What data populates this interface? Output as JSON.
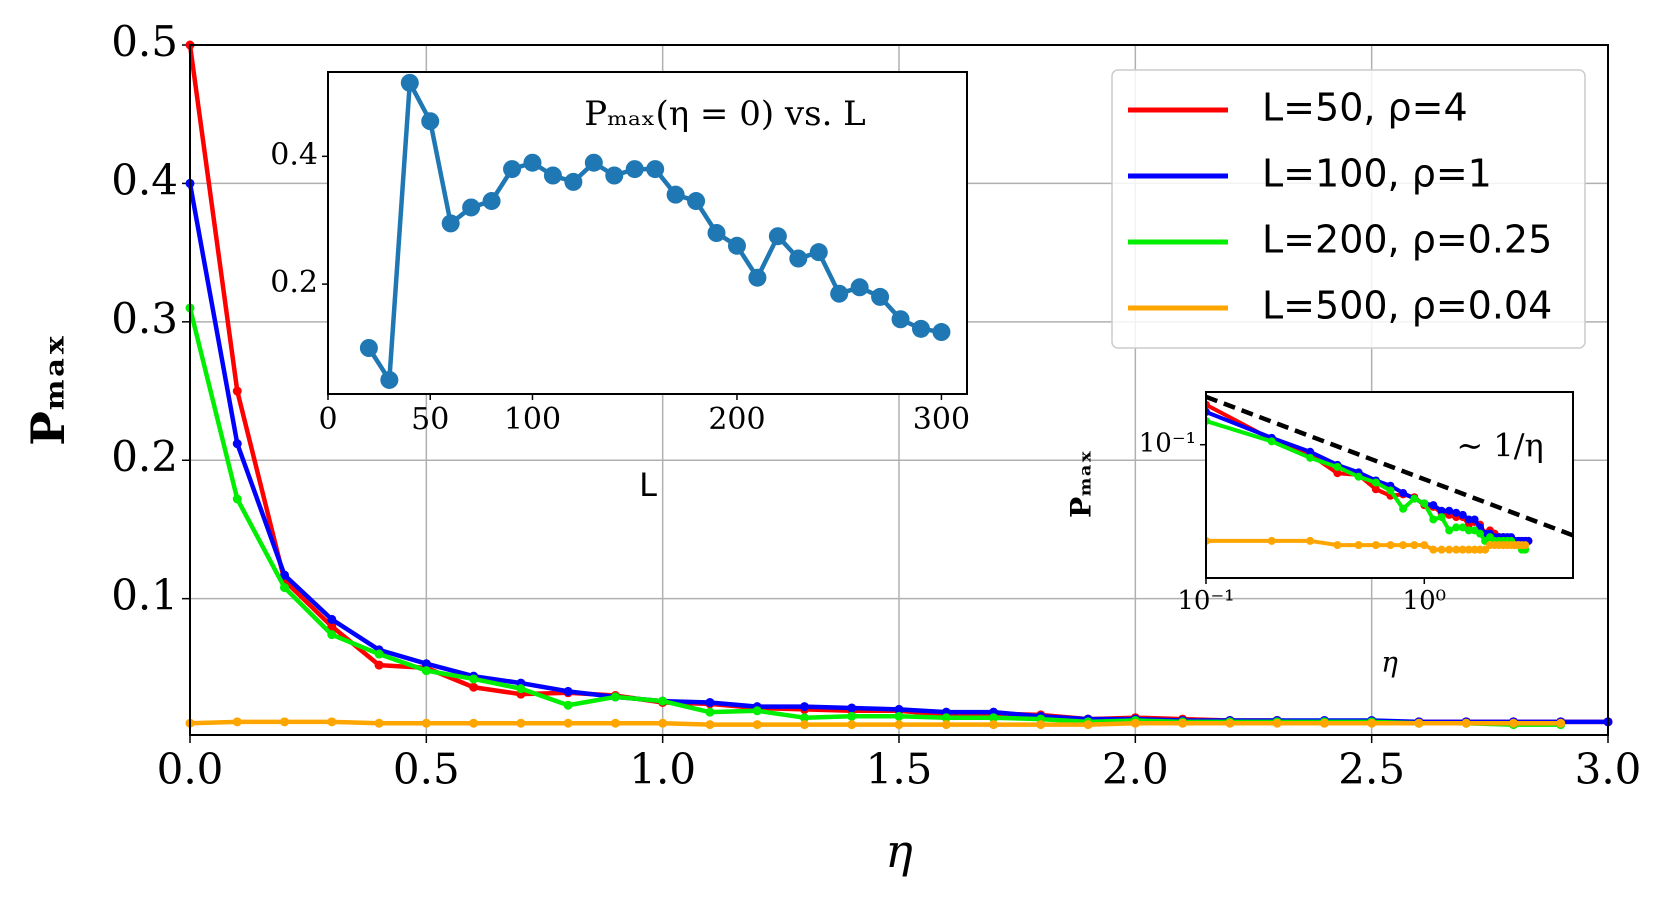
{
  "chart_data": [
    {
      "type": "line",
      "xlabel": "η",
      "ylabel": "Pₘₐₓ",
      "x": [
        0,
        0.1,
        0.2,
        0.3,
        0.4,
        0.5,
        0.6,
        0.7,
        0.8,
        0.9,
        1.0,
        1.1,
        1.2,
        1.3,
        1.4,
        1.5,
        1.6,
        1.7,
        1.8,
        1.9,
        2.0,
        2.1,
        2.2,
        2.3,
        2.4,
        2.5,
        2.6,
        2.7,
        2.8,
        2.9,
        3.0
      ],
      "series": [
        {
          "name": "L=50, ρ=4",
          "color": "#ff0000",
          "values": [
            0.5,
            0.25,
            0.113,
            0.08,
            0.052,
            0.05,
            0.036,
            0.031,
            0.032,
            0.03,
            0.025,
            0.024,
            0.021,
            0.02,
            0.019,
            0.019,
            0.016,
            0.017,
            0.016,
            0.013,
            0.014,
            0.013,
            0.012,
            0.012,
            0.011,
            0.011,
            0.011,
            0.011,
            0.011,
            0.011,
            0.011
          ]
        },
        {
          "name": "L=100, ρ=1",
          "color": "#0000ff",
          "values": [
            0.4,
            0.212,
            0.117,
            0.085,
            0.063,
            0.053,
            0.044,
            0.039,
            0.033,
            0.029,
            0.026,
            0.025,
            0.022,
            0.022,
            0.021,
            0.02,
            0.018,
            0.018,
            0.015,
            0.013,
            0.013,
            0.012,
            0.012,
            0.012,
            0.012,
            0.012,
            0.011,
            0.011,
            0.011,
            0.011,
            0.011
          ]
        },
        {
          "name": "L=200, ρ=0.25",
          "color": "#00ee00",
          "values": [
            0.31,
            0.172,
            0.108,
            0.074,
            0.06,
            0.048,
            0.042,
            0.035,
            0.023,
            0.029,
            0.026,
            0.018,
            0.019,
            0.014,
            0.015,
            0.015,
            0.014,
            0.014,
            0.013,
            0.011,
            0.012,
            0.011,
            0.011,
            0.011,
            0.011,
            0.011,
            0.01,
            0.01,
            0.009,
            0.009,
            null
          ]
        },
        {
          "name": "L=500, ρ=0.04",
          "color": "#ffa500",
          "values": [
            0.01,
            0.011,
            0.011,
            0.011,
            0.01,
            0.01,
            0.01,
            0.01,
            0.01,
            0.01,
            0.01,
            0.009,
            0.009,
            0.009,
            0.009,
            0.009,
            0.009,
            0.009,
            0.009,
            0.009,
            0.01,
            0.01,
            0.01,
            0.01,
            0.01,
            0.01,
            0.01,
            0.01,
            0.01,
            0.01,
            null
          ]
        }
      ],
      "xlim": [
        0,
        3
      ],
      "ylim": [
        0.0015,
        0.5
      ],
      "xticks": [
        {
          "value": 0,
          "label": "0.0"
        },
        0.5,
        {
          "value": 1,
          "label": "1.0"
        },
        1.5,
        {
          "value": 2,
          "label": "2.0"
        },
        2.5,
        {
          "value": 3,
          "label": "3.0"
        }
      ],
      "yticks": [
        0.1,
        0.2,
        0.3,
        0.4,
        0.5
      ],
      "grid": true,
      "legend": "upper right"
    },
    {
      "type": "line",
      "title": "Pₘₐₓ(η = 0) vs. L",
      "xlabel": "L",
      "color": "#1f77b4",
      "x": [
        20,
        30,
        40,
        50,
        60,
        70,
        80,
        90,
        100,
        110,
        120,
        130,
        140,
        150,
        160,
        170,
        180,
        190,
        200,
        210,
        220,
        230,
        240,
        250,
        260,
        270,
        280,
        290,
        300
      ],
      "values": [
        0.1,
        0.05,
        0.515,
        0.455,
        0.295,
        0.32,
        0.33,
        0.38,
        0.39,
        0.37,
        0.36,
        0.39,
        0.37,
        0.38,
        0.38,
        0.34,
        0.33,
        0.28,
        0.26,
        0.21,
        0.275,
        0.24,
        0.25,
        0.185,
        0.195,
        0.18,
        0.145,
        0.13,
        0.125
      ],
      "xlim": [
        0,
        312.5
      ],
      "ylim": [
        0.028,
        0.532
      ],
      "xticks": [
        0,
        50,
        100,
        200,
        300
      ],
      "yticks": [
        0.2,
        0.4
      ]
    },
    {
      "type": "loglog",
      "xlabel": "η",
      "ylabel": "Pₘₐₓ",
      "annotation": "∼ 1/η",
      "xlog": true,
      "ylog": true,
      "reference": {
        "x": [
          0.1,
          4.8
        ],
        "values": [
          0.3,
          0.0125
        ]
      },
      "xlim": [
        0.1,
        4.8
      ],
      "ylim": [
        0.0047,
        0.335
      ],
      "xticks": [
        {
          "value": 0.1,
          "label": "10⁻¹"
        },
        {
          "value": 1,
          "label": "10⁰"
        }
      ],
      "yticks": [
        {
          "value": 0.1,
          "label": "10⁻¹"
        }
      ]
    }
  ]
}
